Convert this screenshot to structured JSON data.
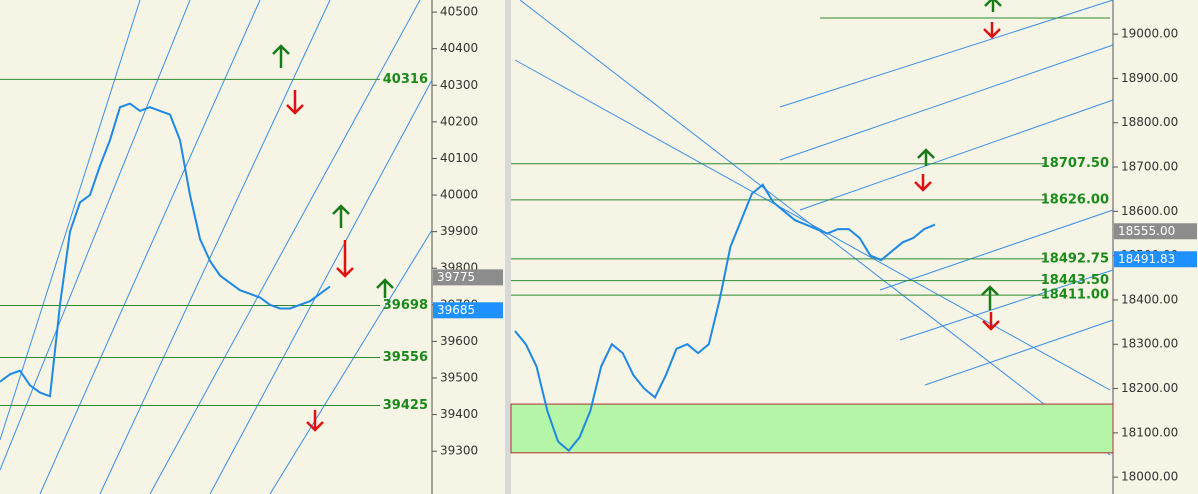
{
  "chart_data": [
    {
      "type": "line",
      "color": "#1e88e5",
      "ylim": [
        39183,
        40533
      ],
      "yticks": [
        39300,
        39400,
        39500,
        39600,
        39700,
        39800,
        39900,
        40000,
        40100,
        40200,
        40300,
        40400,
        40500
      ],
      "levels": [
        40316,
        39698,
        39556,
        39425
      ],
      "price_tags": [
        {
          "value": 39775,
          "label": "39775",
          "color": "#8c8c8c"
        },
        {
          "value": 39685,
          "label": "39685",
          "color": "#1e90ff"
        }
      ],
      "values": [
        39490,
        39510,
        39520,
        39480,
        39460,
        39450,
        39700,
        39900,
        39980,
        40000,
        40080,
        40150,
        40240,
        40250,
        40230,
        40240,
        40230,
        40220,
        40150,
        40000,
        39880,
        39820,
        39780,
        39760,
        39740,
        39730,
        39720,
        39700,
        39690,
        39690,
        39700,
        39710,
        39730,
        39750
      ]
    },
    {
      "type": "line",
      "color": "#1e88e5",
      "ylim": [
        17962,
        19077
      ],
      "yticks": [
        {
          "value": 18000,
          "label": "18000.00"
        },
        {
          "value": 18100,
          "label": "18100.00"
        },
        {
          "value": 18200,
          "label": "18200.00"
        },
        {
          "value": 18300,
          "label": "18300.00"
        },
        {
          "value": 18400,
          "label": "18400.00"
        },
        {
          "value": 18500,
          "label": "18500.00"
        },
        {
          "value": 18600,
          "label": "18600.00"
        },
        {
          "value": 18700,
          "label": "18700.00"
        },
        {
          "value": 18800,
          "label": "18800.00"
        },
        {
          "value": 18900,
          "label": "18900.00"
        },
        {
          "value": 19000,
          "label": "19000.00"
        }
      ],
      "levels": [
        {
          "value": 18707.5,
          "label": "18707.50"
        },
        {
          "value": 18626,
          "label": "18626.00"
        },
        {
          "value": 18492.75,
          "label": "18492.75"
        },
        {
          "value": 18443.5,
          "label": "18443.50"
        },
        {
          "value": 18411,
          "label": "18411.00"
        }
      ],
      "zone": [
        18055,
        18165
      ],
      "price_tags": [
        {
          "value": 18555,
          "label": "18555.00",
          "color": "#8c8c8c"
        },
        {
          "value": 18491.83,
          "label": "18491.83",
          "color": "#1e90ff"
        }
      ],
      "values": [
        18330,
        18300,
        18250,
        18150,
        18080,
        18060,
        18090,
        18150,
        18250,
        18300,
        18280,
        18230,
        18200,
        18180,
        18230,
        18290,
        18300,
        18280,
        18300,
        18400,
        18520,
        18580,
        18640,
        18660,
        18620,
        18600,
        18580,
        18570,
        18560,
        18550,
        18560,
        18560,
        18540,
        18500,
        18490,
        18510,
        18530,
        18540,
        18560,
        18570
      ]
    }
  ]
}
